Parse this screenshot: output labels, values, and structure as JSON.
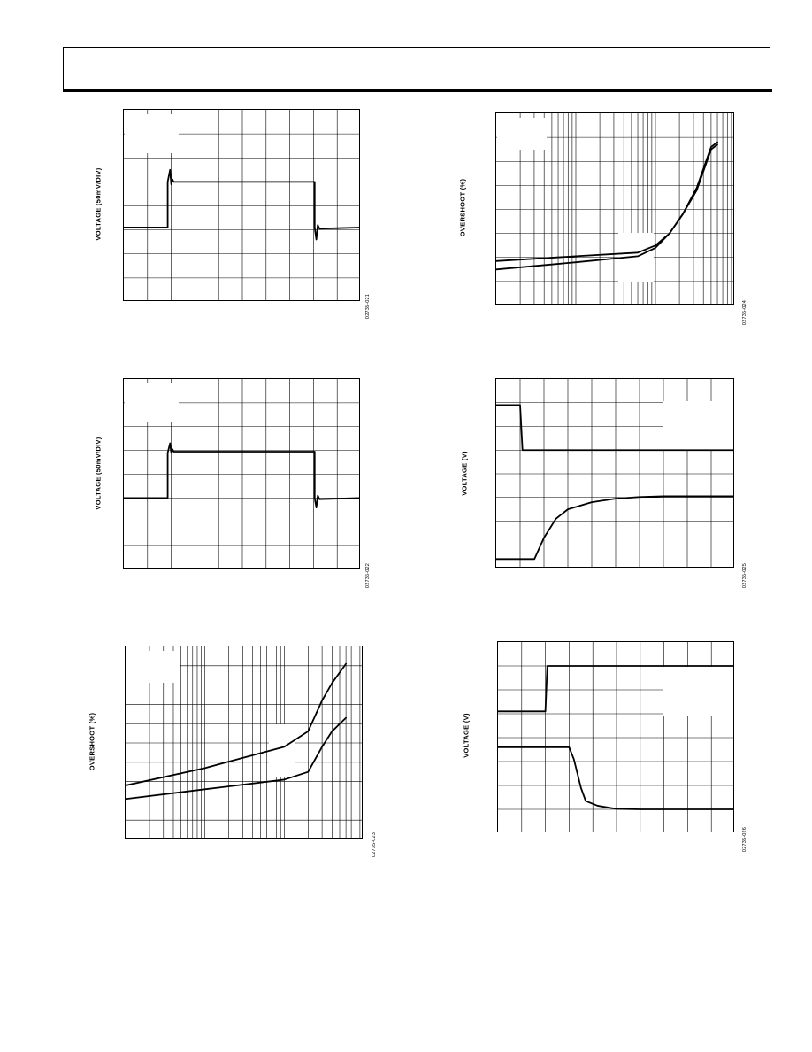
{
  "header": {},
  "chart_data": [
    {
      "type": "line",
      "ylabel": "VOLTAGE (50mV/DIV)",
      "figure_id": "02735-021",
      "grid": true,
      "grid_divisions": [
        10,
        8
      ],
      "xlim": [
        0,
        10
      ],
      "ylim": [
        0,
        8
      ],
      "series": [
        {
          "x": [
            0,
            1.85,
            1.85,
            1.95,
            2.0,
            2.05,
            2.1,
            8.05,
            8.05,
            8.12,
            8.18,
            8.25,
            10
          ],
          "y": [
            3.1,
            3.1,
            5.0,
            5.5,
            4.9,
            5.1,
            5.0,
            5.0,
            3.1,
            2.6,
            3.2,
            3.05,
            3.1
          ]
        }
      ]
    },
    {
      "type": "line",
      "ylabel": "OVERSHOOT (%)",
      "figure_id": "02735-024",
      "grid": true,
      "x_scale": "log",
      "grid_divisions": [
        3,
        8
      ],
      "xlim": [
        1,
        1000
      ],
      "ylim": [
        0,
        8
      ],
      "series": [
        {
          "x": [
            1,
            10,
            60,
            100,
            150,
            220,
            330,
            500,
            600
          ],
          "y": [
            1.85,
            2.05,
            2.2,
            2.5,
            3.0,
            3.8,
            4.8,
            6.5,
            6.7
          ]
        },
        {
          "x": [
            1,
            10,
            60,
            100,
            150,
            220,
            330,
            500,
            600
          ],
          "y": [
            1.5,
            1.8,
            2.05,
            2.4,
            3.0,
            3.8,
            4.9,
            6.6,
            6.8
          ]
        }
      ]
    },
    {
      "type": "line",
      "ylabel": "VOLTAGE (50mV/DIV)",
      "figure_id": "02735-022",
      "grid": true,
      "grid_divisions": [
        10,
        8
      ],
      "xlim": [
        0,
        10
      ],
      "ylim": [
        0,
        8
      ],
      "series": [
        {
          "x": [
            0,
            1.85,
            1.85,
            1.95,
            2.0,
            2.05,
            2.1,
            8.05,
            8.05,
            8.12,
            8.18,
            8.25,
            10
          ],
          "y": [
            3.0,
            3.0,
            4.9,
            5.3,
            4.9,
            5.05,
            4.95,
            4.95,
            3.0,
            2.6,
            3.1,
            2.95,
            3.0
          ]
        }
      ]
    },
    {
      "type": "line",
      "ylabel": "VOLTAGE (V)",
      "figure_id": "02735-025",
      "grid": true,
      "grid_divisions": [
        10,
        8
      ],
      "xlim": [
        0,
        10
      ],
      "ylim": [
        0,
        8
      ],
      "series": [
        {
          "x": [
            0,
            1.0,
            1.1,
            10
          ],
          "y": [
            6.9,
            6.9,
            5.0,
            5.0
          ]
        },
        {
          "x": [
            0,
            1.6,
            2.0,
            2.5,
            3.0,
            4.0,
            5.0,
            6.0,
            7.0,
            10
          ],
          "y": [
            0.4,
            0.4,
            1.3,
            2.1,
            2.5,
            2.8,
            2.95,
            3.02,
            3.05,
            3.05
          ]
        }
      ]
    },
    {
      "type": "line",
      "ylabel": "OVERSHOOT (%)",
      "figure_id": "02735-023",
      "grid": true,
      "x_scale": "log",
      "grid_divisions": [
        3,
        10
      ],
      "xlim": [
        1,
        1000
      ],
      "ylim": [
        0,
        10
      ],
      "series": [
        {
          "x": [
            1,
            10,
            100,
            200,
            300,
            400,
            600
          ],
          "y": [
            2.8,
            3.7,
            4.8,
            5.6,
            7.2,
            8.1,
            9.1
          ]
        },
        {
          "x": [
            1,
            10,
            100,
            200,
            300,
            400,
            600
          ],
          "y": [
            2.1,
            2.6,
            3.1,
            3.5,
            4.8,
            5.6,
            6.3
          ]
        }
      ]
    },
    {
      "type": "line",
      "ylabel": "VOLTAGE (V)",
      "figure_id": "02735-026",
      "grid": true,
      "grid_divisions": [
        10,
        8
      ],
      "xlim": [
        0,
        10
      ],
      "ylim": [
        0,
        8
      ],
      "series": [
        {
          "x": [
            0,
            2.0,
            2.08,
            10
          ],
          "y": [
            5.1,
            5.1,
            7.0,
            7.0
          ]
        },
        {
          "x": [
            0,
            3.0,
            3.2,
            3.5,
            3.7,
            4.2,
            5.0,
            6.0,
            10
          ],
          "y": [
            3.6,
            3.6,
            3.1,
            1.9,
            1.35,
            1.15,
            1.02,
            1.0,
            1.0
          ]
        }
      ]
    }
  ]
}
